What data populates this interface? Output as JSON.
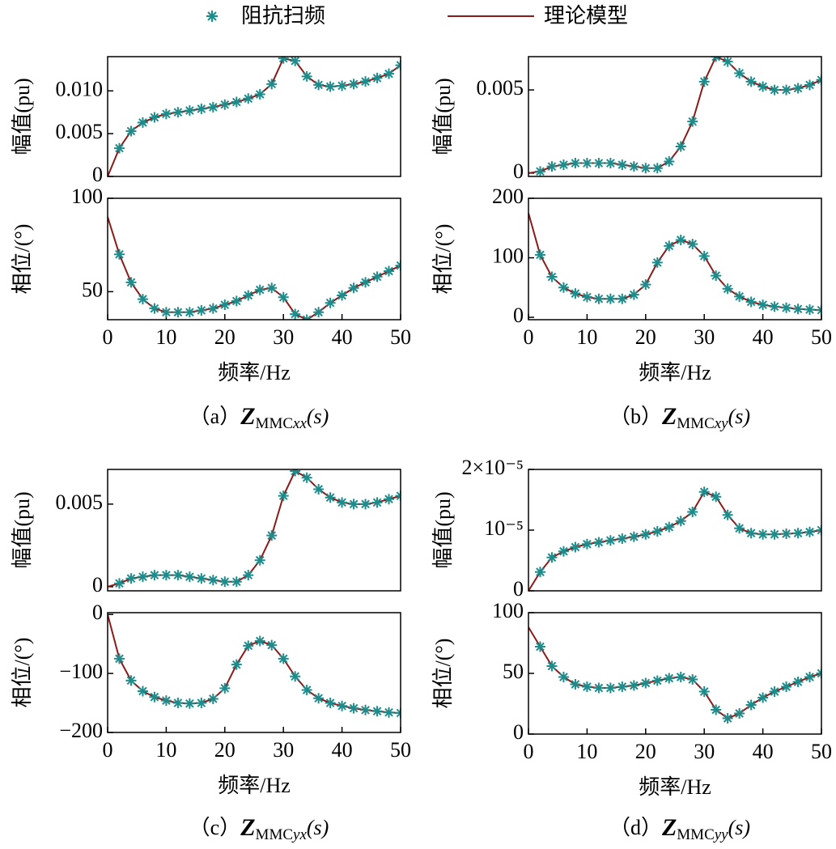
{
  "legend": {
    "items": [
      {
        "name": "阻抗扫频",
        "color": "#1f8c8c",
        "marker": "star"
      },
      {
        "name": "理论模型",
        "color": "#8b1a1a",
        "marker": "line"
      }
    ]
  },
  "captions": [
    {
      "label": "（a）",
      "symbol": "Z",
      "sub": "MMC",
      "sub_var": "xx",
      "arg": "(s)"
    },
    {
      "label": "（b）",
      "symbol": "Z",
      "sub": "MMC",
      "sub_var": "xy",
      "arg": "(s)"
    },
    {
      "label": "（c）",
      "symbol": "Z",
      "sub": "MMC",
      "sub_var": "yx",
      "arg": "(s)"
    },
    {
      "label": "（d）",
      "symbol": "Z",
      "sub": "MMC",
      "sub_var": "yy",
      "arg": "(s)"
    }
  ],
  "chart_data": [
    {
      "type": "line",
      "ylabel": "幅值(pu)",
      "x": [
        0,
        2,
        4,
        6,
        8,
        10,
        12,
        14,
        16,
        18,
        20,
        22,
        24,
        26,
        28,
        30,
        32,
        34,
        36,
        38,
        40,
        42,
        44,
        46,
        48,
        50
      ],
      "xlim": [
        0,
        50
      ],
      "ylim": [
        0,
        0.014
      ],
      "yticks": [
        0,
        0.005,
        {
          "value": 0.01,
          "label": "0.010"
        }
      ],
      "series": [
        {
          "kind": "scatter",
          "color": "#1f8c8c",
          "values": [
            null,
            0.0033,
            0.0053,
            0.0063,
            0.0069,
            0.0073,
            0.0075,
            0.0077,
            0.0079,
            0.0081,
            0.0084,
            0.0087,
            0.0091,
            0.0096,
            0.0108,
            0.0138,
            0.0135,
            0.0117,
            0.0107,
            0.0105,
            0.0106,
            0.0108,
            0.0111,
            0.0115,
            0.012,
            0.013
          ]
        },
        {
          "kind": "line",
          "color": "#8b1a1a",
          "values": [
            0,
            0.0033,
            0.0053,
            0.0063,
            0.0069,
            0.0073,
            0.0075,
            0.0077,
            0.0079,
            0.0081,
            0.0084,
            0.0087,
            0.0091,
            0.0096,
            0.0108,
            0.0138,
            0.0135,
            0.0117,
            0.0107,
            0.0105,
            0.0106,
            0.0108,
            0.0111,
            0.0115,
            0.012,
            0.013
          ]
        }
      ]
    },
    {
      "type": "line",
      "ylabel": "相位/(°)",
      "xlabel": "频率/Hz",
      "x": [
        0,
        2,
        4,
        6,
        8,
        10,
        12,
        14,
        16,
        18,
        20,
        22,
        24,
        26,
        28,
        30,
        32,
        34,
        36,
        38,
        40,
        42,
        44,
        46,
        48,
        50
      ],
      "xlim": [
        0,
        50
      ],
      "xticks": [
        0,
        10,
        20,
        30,
        40,
        50
      ],
      "ylim": [
        35,
        100
      ],
      "yticks": [
        50,
        100
      ],
      "series": [
        {
          "kind": "scatter",
          "color": "#1f8c8c",
          "values": [
            null,
            70,
            55,
            46,
            41,
            39,
            39,
            39,
            40,
            41,
            43,
            45,
            48,
            51,
            52,
            47,
            38,
            35,
            39,
            44,
            48,
            52,
            55,
            58,
            61,
            64
          ]
        },
        {
          "kind": "line",
          "color": "#8b1a1a",
          "values": [
            90,
            70,
            55,
            46,
            41,
            39,
            39,
            39,
            40,
            41,
            43,
            45,
            48,
            51,
            52,
            47,
            38,
            35,
            39,
            44,
            48,
            52,
            55,
            58,
            61,
            64
          ]
        }
      ]
    },
    {
      "type": "line",
      "ylabel": "幅值(pu)",
      "x": [
        0,
        2,
        4,
        6,
        8,
        10,
        12,
        14,
        16,
        18,
        20,
        22,
        24,
        26,
        28,
        30,
        32,
        34,
        36,
        38,
        40,
        42,
        44,
        46,
        48,
        50
      ],
      "xlim": [
        0,
        50
      ],
      "ylim": [
        -0.0002,
        0.007
      ],
      "yticks": [
        0,
        0.005
      ],
      "series": [
        {
          "kind": "scatter",
          "color": "#1f8c8c",
          "values": [
            null,
            0.0001,
            0.0004,
            0.0005,
            0.0006,
            0.0006,
            0.0006,
            0.0006,
            0.0005,
            0.0004,
            0.0003,
            0.0003,
            0.0007,
            0.0016,
            0.0031,
            0.0055,
            0.007,
            0.0067,
            0.006,
            0.0055,
            0.0052,
            0.005,
            0.005,
            0.0051,
            0.0053,
            0.0056
          ]
        },
        {
          "kind": "line",
          "color": "#8b1a1a",
          "values": [
            0,
            0.0001,
            0.0004,
            0.0005,
            0.0006,
            0.0006,
            0.0006,
            0.0006,
            0.0005,
            0.0004,
            0.0003,
            0.0003,
            0.0007,
            0.0016,
            0.0031,
            0.0055,
            0.007,
            0.0067,
            0.006,
            0.0055,
            0.0052,
            0.005,
            0.005,
            0.0051,
            0.0053,
            0.0056
          ]
        }
      ]
    },
    {
      "type": "line",
      "ylabel": "相位/(°)",
      "xlabel": "频率/Hz",
      "x": [
        0,
        2,
        4,
        6,
        8,
        10,
        12,
        14,
        16,
        18,
        20,
        22,
        24,
        26,
        28,
        30,
        32,
        34,
        36,
        38,
        40,
        42,
        44,
        46,
        48,
        50
      ],
      "xlim": [
        0,
        50
      ],
      "xticks": [
        0,
        10,
        20,
        30,
        40,
        50
      ],
      "ylim": [
        -4,
        200
      ],
      "yticks": [
        0,
        100,
        200
      ],
      "series": [
        {
          "kind": "scatter",
          "color": "#1f8c8c",
          "values": [
            null,
            105,
            68,
            50,
            40,
            34,
            31,
            31,
            31,
            38,
            55,
            92,
            120,
            130,
            123,
            103,
            70,
            48,
            35,
            26,
            21,
            18,
            16,
            14,
            13,
            12
          ]
        },
        {
          "kind": "line",
          "color": "#8b1a1a",
          "values": [
            175,
            105,
            68,
            50,
            40,
            34,
            31,
            31,
            31,
            38,
            55,
            92,
            120,
            130,
            123,
            103,
            70,
            48,
            35,
            26,
            21,
            18,
            16,
            14,
            13,
            12
          ]
        }
      ]
    },
    {
      "type": "line",
      "ylabel": "幅值(pu)",
      "x": [
        0,
        2,
        4,
        6,
        8,
        10,
        12,
        14,
        16,
        18,
        20,
        22,
        24,
        26,
        28,
        30,
        32,
        34,
        36,
        38,
        40,
        42,
        44,
        46,
        48,
        50
      ],
      "xlim": [
        0,
        50
      ],
      "ylim": [
        -0.00025,
        0.0071
      ],
      "yticks": [
        0,
        0.005
      ],
      "series": [
        {
          "kind": "scatter",
          "color": "#1f8c8c",
          "values": [
            null,
            0.0002,
            0.0005,
            0.0006,
            0.0007,
            0.0007,
            0.0007,
            0.0006,
            0.0005,
            0.0004,
            0.0003,
            0.0003,
            0.0007,
            0.0016,
            0.0031,
            0.0055,
            0.007,
            0.0066,
            0.0059,
            0.0054,
            0.0051,
            0.005,
            0.005,
            0.0051,
            0.0053,
            0.0055
          ]
        },
        {
          "kind": "line",
          "color": "#8b1a1a",
          "values": [
            0,
            0.0002,
            0.0005,
            0.0006,
            0.0007,
            0.0007,
            0.0007,
            0.0006,
            0.0005,
            0.0004,
            0.0003,
            0.0003,
            0.0007,
            0.0016,
            0.0031,
            0.0055,
            0.007,
            0.0066,
            0.0059,
            0.0054,
            0.0051,
            0.005,
            0.005,
            0.0051,
            0.0053,
            0.0055
          ]
        }
      ]
    },
    {
      "type": "line",
      "ylabel": "相位/(°)",
      "xlabel": "频率/Hz",
      "x": [
        0,
        2,
        4,
        6,
        8,
        10,
        12,
        14,
        16,
        18,
        20,
        22,
        24,
        26,
        28,
        30,
        32,
        34,
        36,
        38,
        40,
        42,
        44,
        46,
        48,
        50
      ],
      "xlim": [
        0,
        50
      ],
      "xticks": [
        0,
        10,
        20,
        30,
        40,
        50
      ],
      "ylim": [
        -200,
        3
      ],
      "yticks": [
        {
          "value": -200,
          "label": "−200"
        },
        {
          "value": -100,
          "label": "−100"
        },
        0
      ],
      "series": [
        {
          "kind": "scatter",
          "color": "#1f8c8c",
          "values": [
            null,
            -75,
            -112,
            -130,
            -140,
            -146,
            -150,
            -151,
            -150,
            -143,
            -125,
            -85,
            -53,
            -45,
            -52,
            -75,
            -105,
            -128,
            -142,
            -150,
            -155,
            -159,
            -162,
            -164,
            -166,
            -167
          ]
        },
        {
          "kind": "line",
          "color": "#8b1a1a",
          "values": [
            0,
            -75,
            -112,
            -130,
            -140,
            -146,
            -150,
            -151,
            -150,
            -143,
            -125,
            -85,
            -53,
            -45,
            -52,
            -75,
            -105,
            -128,
            -142,
            -150,
            -155,
            -159,
            -162,
            -164,
            -166,
            -167
          ]
        }
      ]
    },
    {
      "type": "line",
      "ylabel": "幅值(pu)",
      "x": [
        0,
        2,
        4,
        6,
        8,
        10,
        12,
        14,
        16,
        18,
        20,
        22,
        24,
        26,
        28,
        30,
        32,
        34,
        36,
        38,
        40,
        42,
        44,
        46,
        48,
        50
      ],
      "xlim": [
        0,
        50
      ],
      "ylim": [
        0,
        2e-05
      ],
      "yticks": [
        0,
        {
          "value": 1e-05,
          "label": "10⁻⁵"
        },
        {
          "value": 2e-05,
          "label": "2×10⁻⁵"
        }
      ],
      "series": [
        {
          "kind": "scatter",
          "color": "#1f8c8c",
          "values": [
            null,
            3.1e-06,
            5.5e-06,
            6.5e-06,
            7.2e-06,
            7.7e-06,
            8e-06,
            8.3e-06,
            8.6e-06,
            8.9e-06,
            9.3e-06,
            9.8e-06,
            1.05e-05,
            1.15e-05,
            1.3e-05,
            1.63e-05,
            1.55e-05,
            1.25e-05,
            1.03e-05,
            9.5e-06,
            9.3e-06,
            9.3e-06,
            9.4e-06,
            9.5e-06,
            9.7e-06,
            1e-05
          ]
        },
        {
          "kind": "line",
          "color": "#8b1a1a",
          "values": [
            0,
            3.1e-06,
            5.5e-06,
            6.5e-06,
            7.2e-06,
            7.7e-06,
            8e-06,
            8.3e-06,
            8.6e-06,
            8.9e-06,
            9.3e-06,
            9.8e-06,
            1.05e-05,
            1.15e-05,
            1.3e-05,
            1.63e-05,
            1.55e-05,
            1.25e-05,
            1.03e-05,
            9.5e-06,
            9.3e-06,
            9.3e-06,
            9.4e-06,
            9.5e-06,
            9.7e-06,
            1e-05
          ]
        }
      ]
    },
    {
      "type": "line",
      "ylabel": "相位/(°)",
      "xlabel": "频率/Hz",
      "x": [
        0,
        2,
        4,
        6,
        8,
        10,
        12,
        14,
        16,
        18,
        20,
        22,
        24,
        26,
        28,
        30,
        32,
        34,
        36,
        38,
        40,
        42,
        44,
        46,
        48,
        50
      ],
      "xlim": [
        0,
        50
      ],
      "xticks": [
        0,
        10,
        20,
        30,
        40,
        50
      ],
      "ylim": [
        0,
        100
      ],
      "yticks": [
        0,
        50,
        100
      ],
      "series": [
        {
          "kind": "scatter",
          "color": "#1f8c8c",
          "values": [
            null,
            72,
            56,
            47,
            41,
            39,
            38,
            38,
            39,
            40,
            42,
            44,
            46,
            47,
            45,
            35,
            20,
            13,
            17,
            24,
            30,
            35,
            39,
            43,
            47,
            50
          ]
        },
        {
          "kind": "line",
          "color": "#8b1a1a",
          "values": [
            88,
            72,
            56,
            47,
            41,
            39,
            38,
            38,
            39,
            40,
            42,
            44,
            46,
            47,
            45,
            35,
            20,
            13,
            17,
            24,
            30,
            35,
            39,
            43,
            47,
            50
          ]
        }
      ]
    }
  ]
}
